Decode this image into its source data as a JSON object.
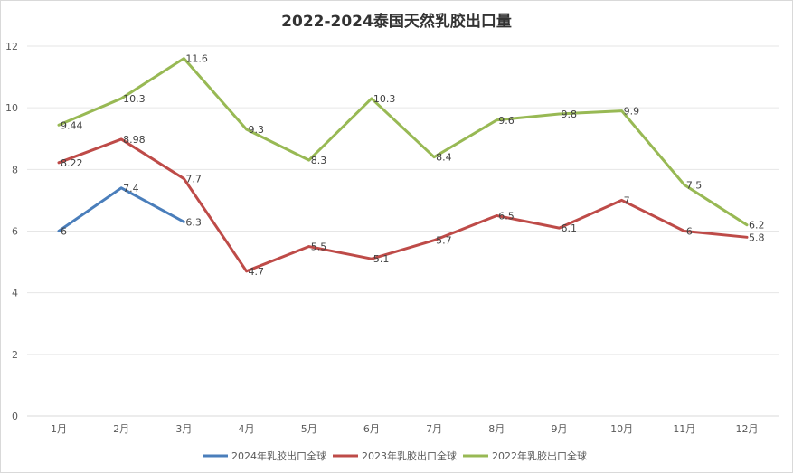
{
  "chart_data": {
    "type": "line",
    "title": "2022-2024泰国天然乳胶出口量",
    "xlabel": "",
    "ylabel": "",
    "categories": [
      "1月",
      "2月",
      "3月",
      "4月",
      "5月",
      "6月",
      "7月",
      "8月",
      "9月",
      "10月",
      "11月",
      "12月"
    ],
    "ylim": [
      0,
      12
    ],
    "yticks": [
      0,
      2,
      4,
      6,
      8,
      10,
      12
    ],
    "grid": true,
    "legend_position": "bottom",
    "series": [
      {
        "name": "2024年乳胶出口全球",
        "color": "#4a7ebb",
        "values": [
          6,
          7.4,
          6.3,
          null,
          null,
          null,
          null,
          null,
          null,
          null,
          null,
          null
        ],
        "labels": [
          "6",
          "7.4",
          "6.3",
          null,
          null,
          null,
          null,
          null,
          null,
          null,
          null,
          null
        ]
      },
      {
        "name": "2023年乳胶出口全球",
        "color": "#be4b48",
        "values": [
          8.22,
          8.98,
          7.7,
          4.7,
          5.5,
          5.1,
          5.7,
          6.5,
          6.1,
          7,
          6,
          5.8
        ],
        "labels": [
          "8.22",
          "8.98",
          "7.7",
          "4.7",
          "5.5",
          "5.1",
          "5.7",
          "6.5",
          "6.1",
          "7",
          "6",
          "5.8"
        ]
      },
      {
        "name": "2022年乳胶出口全球",
        "color": "#98b954",
        "values": [
          9.44,
          10.3,
          11.6,
          9.3,
          8.3,
          10.3,
          8.4,
          9.6,
          9.8,
          9.9,
          7.5,
          6.2
        ],
        "labels": [
          "9.44",
          "10.3",
          "11.6",
          "9.3",
          "8.3",
          "10.3",
          "8.4",
          "9.6",
          "9.8",
          "9.9",
          "7.5",
          "6.2"
        ]
      }
    ]
  }
}
